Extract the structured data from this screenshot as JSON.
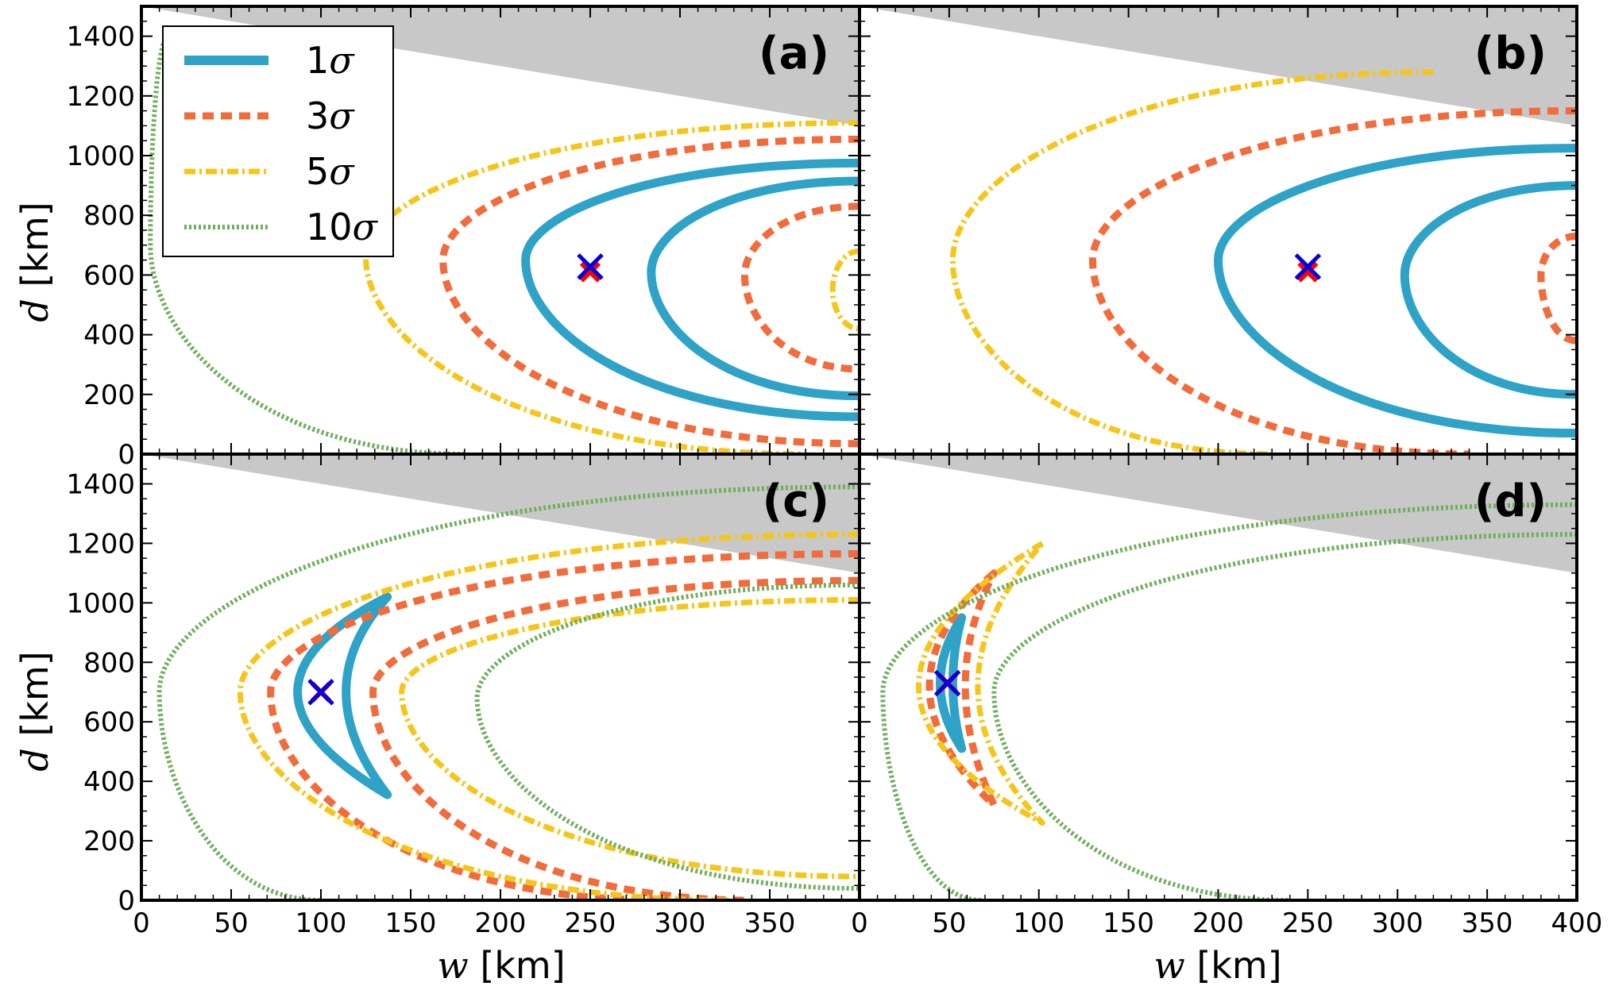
{
  "chart_data": {
    "type": "contour",
    "layout": "2x2 panels sharing axes",
    "xlabel": {
      "symbol": "w",
      "unit": "[km]"
    },
    "ylabel": {
      "symbol": "d",
      "unit": "[km]"
    },
    "xlim": [
      0,
      400
    ],
    "ylim": [
      0,
      1500
    ],
    "x_ticks": [
      0,
      50,
      100,
      150,
      200,
      250,
      300,
      350,
      400
    ],
    "y_ticks": [
      0,
      200,
      400,
      600,
      800,
      1000,
      1200,
      1400
    ],
    "legend": {
      "placement": "top-left of panel (a)",
      "entries": [
        {
          "level": "1",
          "symbol": "σ",
          "color": "#2ea3c7",
          "style": "solid"
        },
        {
          "level": "3",
          "symbol": "σ",
          "color": "#f26b3a",
          "style": "dashed"
        },
        {
          "level": "5",
          "symbol": "σ",
          "color": "#f5c518",
          "style": "dash-dot"
        },
        {
          "level": "10",
          "symbol": "σ",
          "color": "#6fae5b",
          "style": "dotted"
        }
      ]
    },
    "excluded_region": {
      "color": "#c8c8c8",
      "boundary": [
        [
          0,
          1500
        ],
        [
          400,
          1100
        ]
      ]
    },
    "marker_colors": {
      "true_value": "#ff0000",
      "best_fit": "#0000e0"
    },
    "panels": [
      {
        "label": "(a)",
        "true_value": [
          250,
          610
        ],
        "best_fit": [
          250,
          628
        ],
        "contours": [
          {
            "level": "1σ",
            "vertex": [
              214,
              650
            ],
            "top_right": [
              400,
              975
            ],
            "bottom_right": [
              400,
              125
            ]
          },
          {
            "level": "1σ",
            "vertex": [
              284,
              610
            ],
            "top_right": [
              400,
              915
            ],
            "bottom_right": [
              400,
              195
            ]
          },
          {
            "level": "3σ",
            "vertex": [
              168,
              650
            ],
            "top_right": [
              400,
              1055
            ],
            "bottom_right": [
              400,
              35
            ]
          },
          {
            "level": "3σ",
            "vertex": [
              336,
              600
            ],
            "top_right": [
              400,
              830
            ],
            "bottom_right": [
              400,
              285
            ]
          },
          {
            "level": "5σ",
            "vertex": [
              125,
              660
            ],
            "top_right": [
              400,
              1110
            ],
            "bottom_right": [
              370,
              0
            ]
          },
          {
            "level": "5σ",
            "vertex": [
              385,
              550
            ],
            "top_right": [
              400,
              680
            ],
            "bottom_right": [
              400,
              420
            ]
          },
          {
            "level": "10σ",
            "vertex": [
              5,
              700
            ],
            "top_right": [
              15,
              1400
            ],
            "bottom_right": [
              180,
              0
            ]
          }
        ]
      },
      {
        "label": "(b)",
        "true_value": [
          250,
          610
        ],
        "best_fit": [
          250,
          628
        ],
        "contours": [
          {
            "level": "1σ",
            "vertex": [
              200,
              650
            ],
            "top_right": [
              400,
              1025
            ],
            "bottom_right": [
              400,
              70
            ]
          },
          {
            "level": "1σ",
            "vertex": [
              304,
              600
            ],
            "top_right": [
              400,
              900
            ],
            "bottom_right": [
              400,
              200
            ]
          },
          {
            "level": "3σ",
            "vertex": [
              130,
              650
            ],
            "top_right": [
              400,
              1150
            ],
            "bottom_right": [
              340,
              0
            ]
          },
          {
            "level": "3σ",
            "vertex": [
              380,
              600
            ],
            "top_right": [
              400,
              730
            ],
            "bottom_right": [
              400,
              380
            ]
          },
          {
            "level": "5σ",
            "vertex": [
              52,
              650
            ],
            "top_right": [
              320,
              1280
            ],
            "bottom_right": [
              230,
              0
            ]
          }
        ]
      },
      {
        "label": "(c)",
        "true_value": [
          100,
          700
        ],
        "best_fit": [
          100,
          700
        ],
        "contours": [
          {
            "level": "1σ",
            "kind": "crescent",
            "outer_vertex": [
              87,
              700
            ],
            "inner_vertex": [
              114,
              700
            ],
            "top": [
              137,
              1020
            ],
            "bottom": [
              137,
              355
            ]
          },
          {
            "level": "3σ",
            "vertex": [
              72,
              700
            ],
            "top_right": [
              400,
              1165
            ],
            "bottom_right": [
              290,
              0
            ]
          },
          {
            "level": "3σ",
            "vertex": [
              129,
              700
            ],
            "top_right": [
              400,
              1075
            ],
            "bottom_right": [
              340,
              0
            ]
          },
          {
            "level": "5σ",
            "vertex": [
              55,
              700
            ],
            "top_right": [
              400,
              1230
            ],
            "bottom_right": [
              330,
              0
            ]
          },
          {
            "level": "5σ",
            "vertex": [
              145,
              700
            ],
            "top_right": [
              400,
              1010
            ],
            "bottom_right": [
              400,
              80
            ]
          },
          {
            "level": "10σ",
            "vertex": [
              10,
              700
            ],
            "top_right": [
              400,
              1390
            ],
            "bottom_right": [
              100,
              0
            ]
          },
          {
            "level": "10σ",
            "vertex": [
              187,
              680
            ],
            "top_right": [
              400,
              1060
            ],
            "bottom_right": [
              400,
              40
            ]
          }
        ]
      },
      {
        "label": "(d)",
        "true_value": [
          49,
          730
        ],
        "best_fit": [
          49,
          730
        ],
        "contours": [
          {
            "level": "1σ",
            "kind": "crescent",
            "outer_vertex": [
              45,
              730
            ],
            "inner_vertex": [
              52,
              730
            ],
            "top": [
              57,
              950
            ],
            "bottom": [
              57,
              510
            ]
          },
          {
            "level": "3σ",
            "kind": "crescent",
            "outer_vertex": [
              39,
              720
            ],
            "inner_vertex": [
              59,
              720
            ],
            "top": [
              75,
              1100
            ],
            "bottom": [
              75,
              320
            ]
          },
          {
            "level": "5σ",
            "kind": "crescent",
            "outer_vertex": [
              33,
              720
            ],
            "inner_vertex": [
              66,
              720
            ],
            "top": [
              102,
              1200
            ],
            "bottom": [
              102,
              260
            ]
          },
          {
            "level": "10σ",
            "vertex": [
              13,
              700
            ],
            "top_right": [
              400,
              1330
            ],
            "bottom_right": [
              68,
              0
            ]
          },
          {
            "level": "10σ",
            "vertex": [
              75,
              700
            ],
            "top_right": [
              400,
              1230
            ],
            "bottom_right": [
              240,
              0
            ]
          }
        ]
      }
    ]
  }
}
